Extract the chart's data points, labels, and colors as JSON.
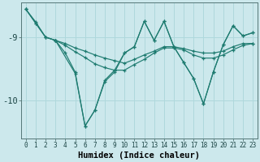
{
  "xlabel": "Humidex (Indice chaleur)",
  "background_color": "#cce8ec",
  "line_color": "#1e7b70",
  "grid_color": "#afd8dc",
  "xlim": [
    -0.5,
    23.5
  ],
  "ylim": [
    -10.6,
    -8.45
  ],
  "yticks": [
    -10,
    -9
  ],
  "xticks": [
    0,
    1,
    2,
    3,
    4,
    5,
    6,
    7,
    8,
    9,
    10,
    11,
    12,
    13,
    14,
    15,
    16,
    17,
    18,
    19,
    20,
    21,
    22,
    23
  ],
  "lines": [
    {
      "x": [
        0,
        1,
        2,
        3
      ],
      "y": [
        -8.56,
        -8.76,
        -9.0,
        -9.05
      ]
    },
    {
      "x": [
        3,
        4,
        5,
        6,
        7,
        8,
        9,
        10,
        11,
        12,
        13,
        14,
        15,
        16,
        17,
        18,
        19,
        20,
        21,
        22,
        23
      ],
      "y": [
        -9.05,
        -9.25,
        -9.55,
        -10.4,
        -10.15,
        -9.7,
        -9.55,
        -9.25,
        -9.15,
        -8.75,
        -9.05,
        -8.75,
        -9.15,
        -9.4,
        -9.65,
        -10.05,
        -9.55,
        -9.12,
        -8.82,
        -8.98,
        -8.93
      ]
    },
    {
      "x": [
        0,
        1,
        2,
        3,
        4,
        5,
        6,
        7,
        8,
        9,
        10,
        11,
        12,
        13,
        14,
        15,
        16,
        17,
        18,
        19,
        20,
        21,
        22,
        23
      ],
      "y": [
        -8.56,
        -8.78,
        -9.0,
        -9.05,
        -9.1,
        -9.17,
        -9.22,
        -9.28,
        -9.33,
        -9.37,
        -9.41,
        -9.35,
        -9.28,
        -9.22,
        -9.15,
        -9.15,
        -9.18,
        -9.22,
        -9.25,
        -9.25,
        -9.22,
        -9.15,
        -9.1,
        -9.1
      ]
    },
    {
      "x": [
        0,
        1,
        2,
        3,
        4,
        5,
        6,
        7,
        8,
        9,
        10,
        11,
        12,
        13,
        14,
        15,
        16,
        17,
        18,
        19,
        20,
        21,
        22,
        23
      ],
      "y": [
        -8.56,
        -8.78,
        -9.0,
        -9.05,
        -9.13,
        -9.23,
        -9.32,
        -9.42,
        -9.48,
        -9.52,
        -9.52,
        -9.43,
        -9.35,
        -9.25,
        -9.17,
        -9.17,
        -9.2,
        -9.28,
        -9.33,
        -9.33,
        -9.28,
        -9.2,
        -9.13,
        -9.1
      ]
    },
    {
      "x": [
        3,
        5,
        6,
        7,
        8,
        9,
        10,
        11,
        12,
        13,
        14,
        15,
        16,
        17,
        18,
        19,
        20,
        21,
        22,
        23
      ],
      "y": [
        -9.05,
        -9.57,
        -10.4,
        -10.15,
        -9.68,
        -9.52,
        -9.25,
        -9.15,
        -8.75,
        -9.05,
        -8.75,
        -9.15,
        -9.4,
        -9.65,
        -10.05,
        -9.55,
        -9.12,
        -8.82,
        -8.98,
        -8.93
      ]
    }
  ]
}
